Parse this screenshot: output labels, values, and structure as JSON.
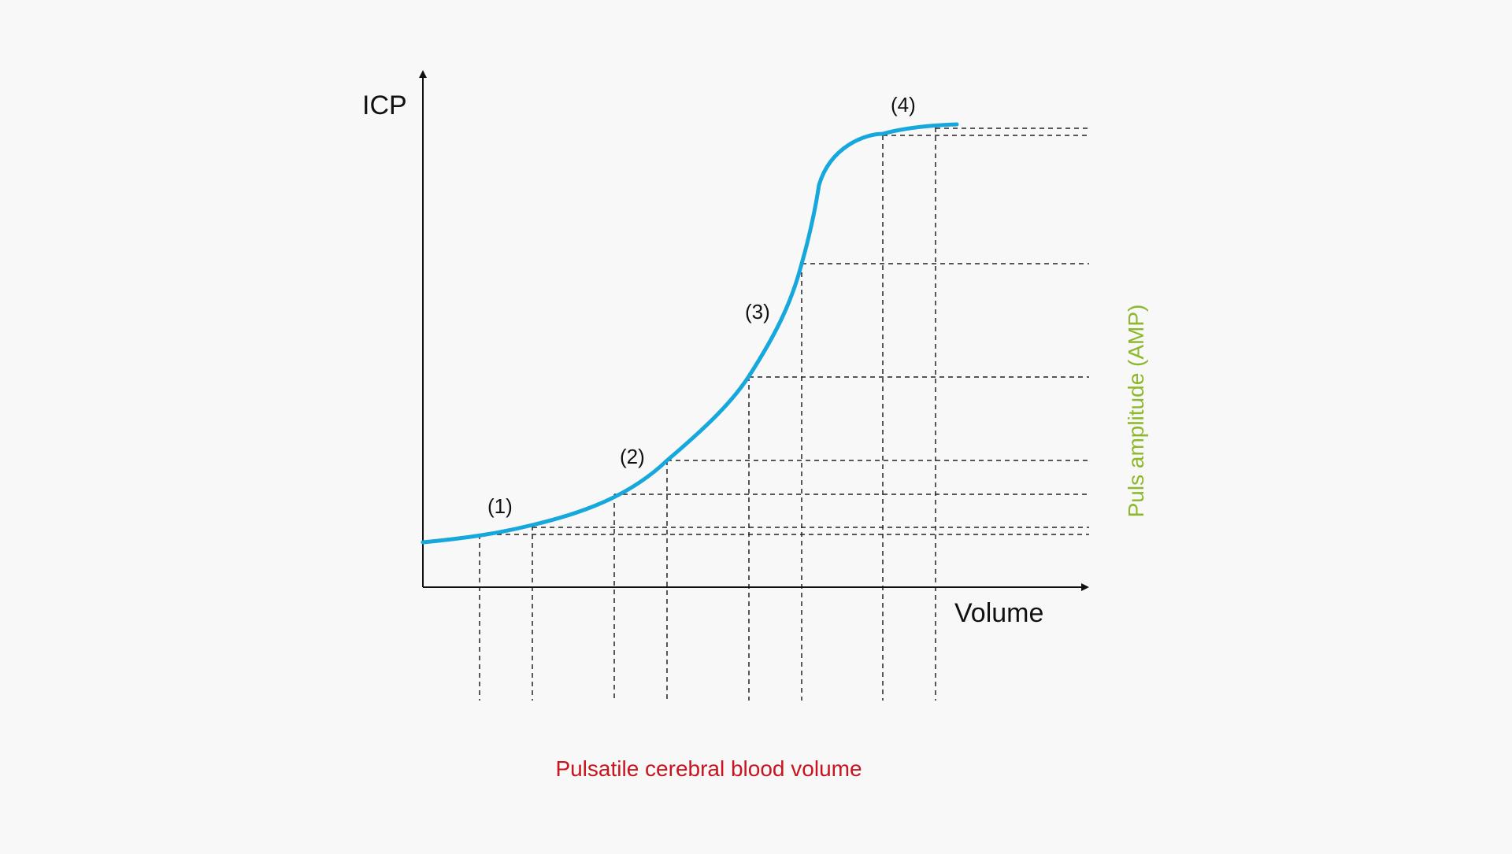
{
  "diagram": {
    "y_axis_label": "ICP",
    "x_axis_label": "Volume",
    "right_label": "Puls amplitude (AMP)",
    "bottom_label": "Pulsatile cerebral blood volume",
    "points": [
      {
        "label": "(1)"
      },
      {
        "label": "(2)"
      },
      {
        "label": "(3)"
      },
      {
        "label": "(4)"
      }
    ]
  },
  "colors": {
    "curve": "#16a8dd",
    "right_label": "#8cb82a",
    "bottom_label": "#c8141e",
    "axis": "#111111",
    "guides": "#222222",
    "background": "#f8f8f8"
  }
}
